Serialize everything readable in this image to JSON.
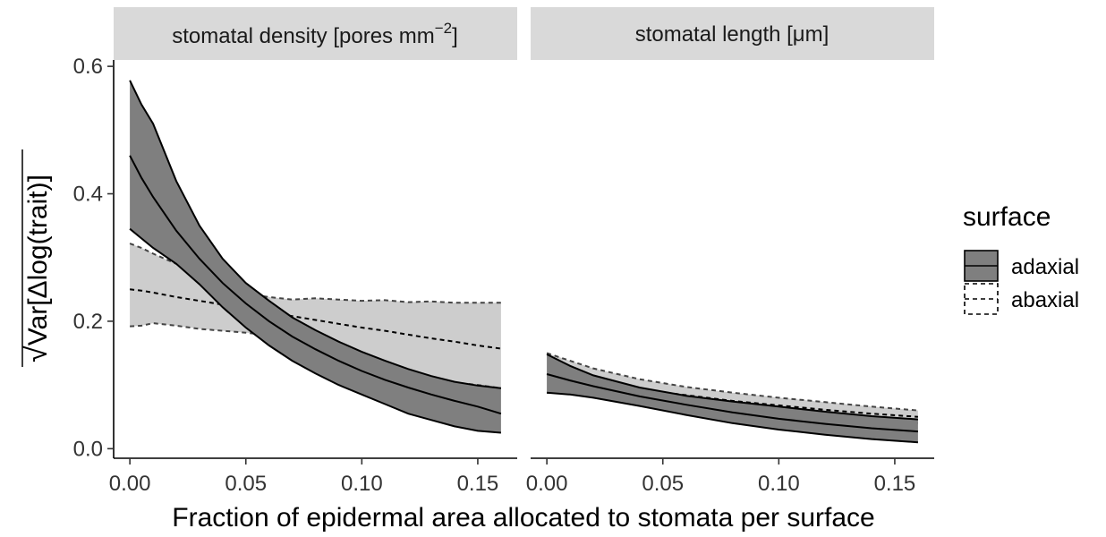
{
  "chart_data": {
    "type": "area",
    "facets": [
      {
        "strip": {
          "label": "stomatal density [pores mm",
          "superscript": "−2",
          "suffix": "]"
        },
        "series": [
          {
            "name": "adaxial",
            "style": "solid",
            "fill": "#7f7f7f",
            "x": [
              0,
              0.005,
              0.01,
              0.02,
              0.03,
              0.04,
              0.05,
              0.06,
              0.07,
              0.08,
              0.09,
              0.1,
              0.11,
              0.12,
              0.13,
              0.14,
              0.15,
              0.16
            ],
            "y": [
              0.46,
              0.425,
              0.395,
              0.342,
              0.298,
              0.26,
              0.228,
              0.2,
              0.176,
              0.156,
              0.138,
              0.122,
              0.108,
              0.096,
              0.085,
              0.075,
              0.066,
              0.055
            ],
            "ymin": [
              0.345,
              0.33,
              0.315,
              0.29,
              0.258,
              0.222,
              0.19,
              0.162,
              0.138,
              0.118,
              0.1,
              0.085,
              0.07,
              0.055,
              0.045,
              0.035,
              0.028,
              0.025
            ],
            "ymax": [
              0.578,
              0.54,
              0.51,
              0.42,
              0.35,
              0.298,
              0.26,
              0.232,
              0.206,
              0.186,
              0.168,
              0.152,
              0.138,
              0.125,
              0.114,
              0.105,
              0.099,
              0.095
            ]
          },
          {
            "name": "abaxial",
            "style": "dashed",
            "fill": "#c4c4c4",
            "x": [
              0,
              0.005,
              0.01,
              0.02,
              0.03,
              0.04,
              0.05,
              0.06,
              0.07,
              0.08,
              0.09,
              0.1,
              0.11,
              0.12,
              0.13,
              0.14,
              0.15,
              0.16
            ],
            "y": [
              0.25,
              0.248,
              0.245,
              0.238,
              0.232,
              0.226,
              0.22,
              0.214,
              0.208,
              0.202,
              0.196,
              0.19,
              0.185,
              0.179,
              0.173,
              0.168,
              0.162,
              0.157
            ],
            "ymin": [
              0.192,
              0.193,
              0.197,
              0.193,
              0.188,
              0.185,
              0.182,
              0.178,
              0.172,
              0.164,
              0.152,
              0.14,
              0.13,
              0.12,
              0.11,
              0.104,
              0.1,
              0.095
            ],
            "ymax": [
              0.322,
              0.315,
              0.306,
              0.29,
              0.268,
              0.25,
              0.243,
              0.238,
              0.234,
              0.236,
              0.234,
              0.232,
              0.233,
              0.23,
              0.231,
              0.229,
              0.229,
              0.229
            ]
          }
        ]
      },
      {
        "strip": {
          "label": "stomatal length [μm]",
          "superscript": "",
          "suffix": ""
        },
        "series": [
          {
            "name": "adaxial",
            "style": "solid",
            "fill": "#7f7f7f",
            "x": [
              0,
              0.01,
              0.02,
              0.04,
              0.06,
              0.08,
              0.1,
              0.12,
              0.14,
              0.16
            ],
            "y": [
              0.117,
              0.107,
              0.098,
              0.082,
              0.069,
              0.057,
              0.047,
              0.039,
              0.032,
              0.027
            ],
            "ymin": [
              0.088,
              0.085,
              0.08,
              0.067,
              0.053,
              0.04,
              0.03,
              0.022,
              0.015,
              0.01
            ],
            "ymax": [
              0.148,
              0.13,
              0.115,
              0.096,
              0.083,
              0.074,
              0.066,
              0.058,
              0.051,
              0.046
            ]
          },
          {
            "name": "abaxial",
            "style": "dashed",
            "fill": "#c4c4c4",
            "x": [
              0,
              0.01,
              0.02,
              0.04,
              0.06,
              0.08,
              0.1,
              0.12,
              0.14,
              0.16
            ],
            "y": [
              0.117,
              0.11,
              0.104,
              0.093,
              0.084,
              0.075,
              0.068,
              0.061,
              0.055,
              0.05
            ],
            "ymin": [
              0.088,
              0.087,
              0.085,
              0.077,
              0.07,
              0.062,
              0.056,
              0.049,
              0.044,
              0.04
            ],
            "ymax": [
              0.15,
              0.138,
              0.126,
              0.109,
              0.097,
              0.088,
              0.08,
              0.073,
              0.066,
              0.06
            ]
          }
        ]
      }
    ],
    "xlim": [
      -0.007,
      0.167
    ],
    "ylim": [
      -0.015,
      0.61
    ],
    "x_ticks": [
      "0.00",
      "0.05",
      "0.10",
      "0.15"
    ],
    "y_ticks": [
      "0.0",
      "0.2",
      "0.4",
      "0.6"
    ],
    "xlabel": "Fraction of epidermal area allocated to stomata per surface",
    "ylabel_radicand": "Var[Δlog(trait)]",
    "legend": {
      "title": "surface",
      "position": "right",
      "entries": [
        "adaxial",
        "abaxial"
      ]
    },
    "grid": false
  }
}
